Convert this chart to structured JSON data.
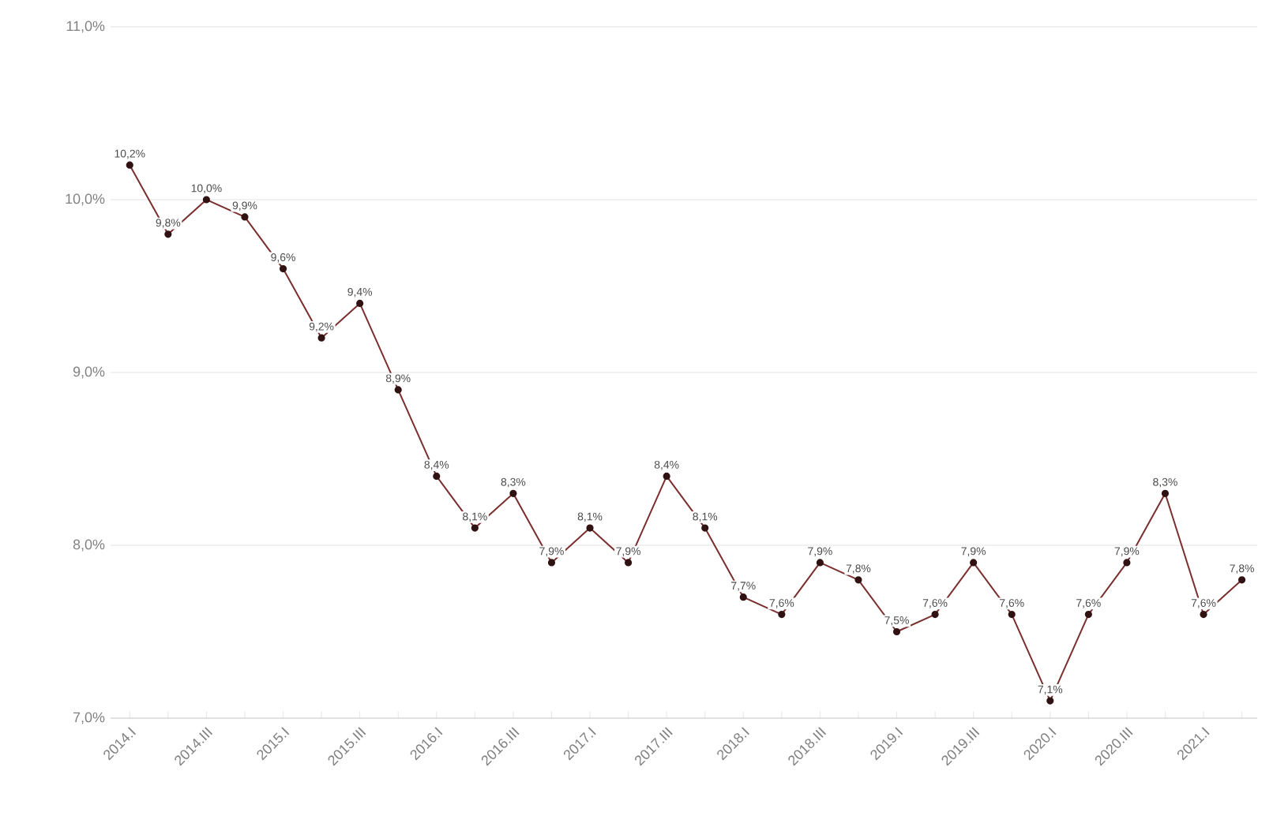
{
  "chart_data": {
    "type": "line",
    "categories": [
      "2014.I",
      null,
      "2014.III",
      null,
      "2015.I",
      null,
      "2015.III",
      null,
      "2016.I",
      null,
      "2016.III",
      null,
      "2017.I",
      null,
      "2017.III",
      null,
      "2018.I",
      null,
      "2018.III",
      null,
      "2019.I",
      null,
      "2019.III",
      null,
      "2020.I",
      null,
      "2020.III",
      null,
      "2021.I",
      null
    ],
    "series": [
      {
        "color": "#7b2e2e",
        "values": [
          10.2,
          9.8,
          10.0,
          9.9,
          9.6,
          9.2,
          9.4,
          8.9,
          8.4,
          8.1,
          8.3,
          7.9,
          8.1,
          7.9,
          8.4,
          8.1,
          7.7,
          7.6,
          7.9,
          7.8,
          7.5,
          7.6,
          7.9,
          7.6,
          7.1,
          7.6,
          7.9,
          8.3,
          7.6,
          7.8
        ],
        "value_labels": [
          "10,2%",
          "9,8%",
          "10,0%",
          "9,9%",
          "9,6%",
          "9,2%",
          "9,4%",
          "8,9%",
          "8,4%",
          "8,1%",
          "8,3%",
          "7,9%",
          "8,1%",
          "7,9%",
          "8,4%",
          "8,1%",
          "7,7%",
          "7,6%",
          "7,9%",
          "7,8%",
          "7,5%",
          "7,6%",
          "7,9%",
          "7,6%",
          "7,1%",
          "7,6%",
          "7,9%",
          "8,3%",
          "7,6%",
          "7,8%"
        ]
      }
    ],
    "ylim": [
      7,
      11
    ],
    "yticks": [
      {
        "value": 7,
        "label": "7,0%"
      },
      {
        "value": 8,
        "label": "8,0%"
      },
      {
        "value": 9,
        "label": "9,0%"
      },
      {
        "value": 10,
        "label": "10,0%"
      },
      {
        "value": 11,
        "label": "11,0%"
      }
    ],
    "grid": "y",
    "marker": "circle",
    "line_style": "solid"
  }
}
